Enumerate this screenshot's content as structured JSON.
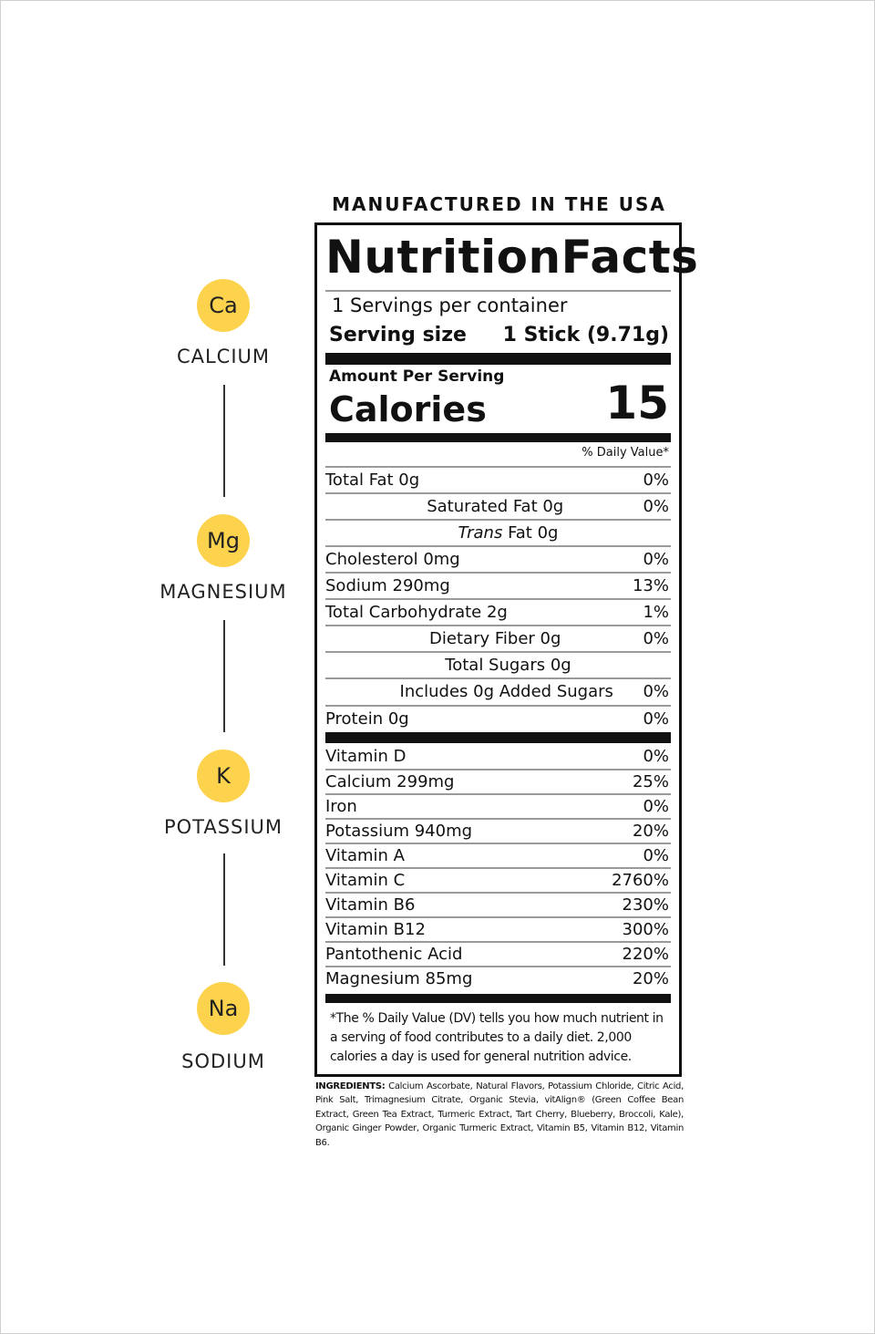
{
  "header": {
    "made_in": "MANUFACTURED IN THE USA"
  },
  "minerals": [
    {
      "symbol": "Ca",
      "name": "CALCIUM"
    },
    {
      "symbol": "Mg",
      "name": "MAGNESIUM"
    },
    {
      "symbol": "K",
      "name": "POTASSIUM"
    },
    {
      "symbol": "Na",
      "name": "SODIUM"
    }
  ],
  "colors": {
    "mineral_circle": "#fdd34d",
    "rule": "#111111"
  },
  "facts": {
    "title_left": "Nutrition",
    "title_right": "Facts",
    "servings": "1 Servings per container",
    "serving_size_label": "Serving size",
    "serving_size_value": "1 Stick (9.71g)",
    "amount_per_serving": "Amount Per Serving",
    "calories_label": "Calories",
    "calories_value": "15",
    "dv_header": "% Daily Value*",
    "nutrients": [
      {
        "name": "Total Fat 0g",
        "dv": "0%"
      },
      {
        "name": "Saturated Fat 0g",
        "dv": "0%"
      },
      {
        "name_italic": "Trans",
        "name": " Fat 0g",
        "dv": ""
      },
      {
        "name": "Cholesterol 0mg",
        "dv": "0%"
      },
      {
        "name": "Sodium 290mg",
        "dv": "13%"
      },
      {
        "name": "Total Carbohydrate 2g",
        "dv": "1%"
      },
      {
        "name": "Dietary Fiber 0g",
        "dv": "0%"
      },
      {
        "name": "Total Sugars 0g",
        "dv": ""
      },
      {
        "name": "Includes 0g Added Sugars",
        "dv": "0%"
      },
      {
        "name": "Protein 0g",
        "dv": "0%"
      }
    ],
    "vitamins": [
      {
        "name": "Vitamin D",
        "dv": "0%"
      },
      {
        "name": "Calcium 299mg",
        "dv": "25%"
      },
      {
        "name": "Iron",
        "dv": "0%"
      },
      {
        "name": "Potassium 940mg",
        "dv": "20%"
      },
      {
        "name": "Vitamin A",
        "dv": "0%"
      },
      {
        "name": "Vitamin C",
        "dv": "2760%"
      },
      {
        "name": "Vitamin B6",
        "dv": "230%"
      },
      {
        "name": "Vitamin B12",
        "dv": "300%"
      },
      {
        "name": "Pantothenic Acid",
        "dv": "220%"
      },
      {
        "name": "Magnesium 85mg",
        "dv": "20%"
      }
    ],
    "footnote": "*The % Daily Value (DV) tells you how much nutrient in a serving of food contributes to a daily diet. 2,000 calories a day is used for general nutrition advice."
  },
  "ingredients": {
    "label": "INGREDIENTS:",
    "text": " Calcium Ascorbate, Natural Flavors, Potassium Chloride, Citric Acid, Pink Salt, Trimagnesium Citrate, Organic Stevia, vitAlign® (Green Coffee Bean Extract, Green Tea Extract, Turmeric Extract, Tart Cherry, Blueberry, Broccoli, Kale), Organic Ginger Powder, Organic Turmeric Extract, Vitamin B5, Vitamin B12, Vitamin B6."
  }
}
